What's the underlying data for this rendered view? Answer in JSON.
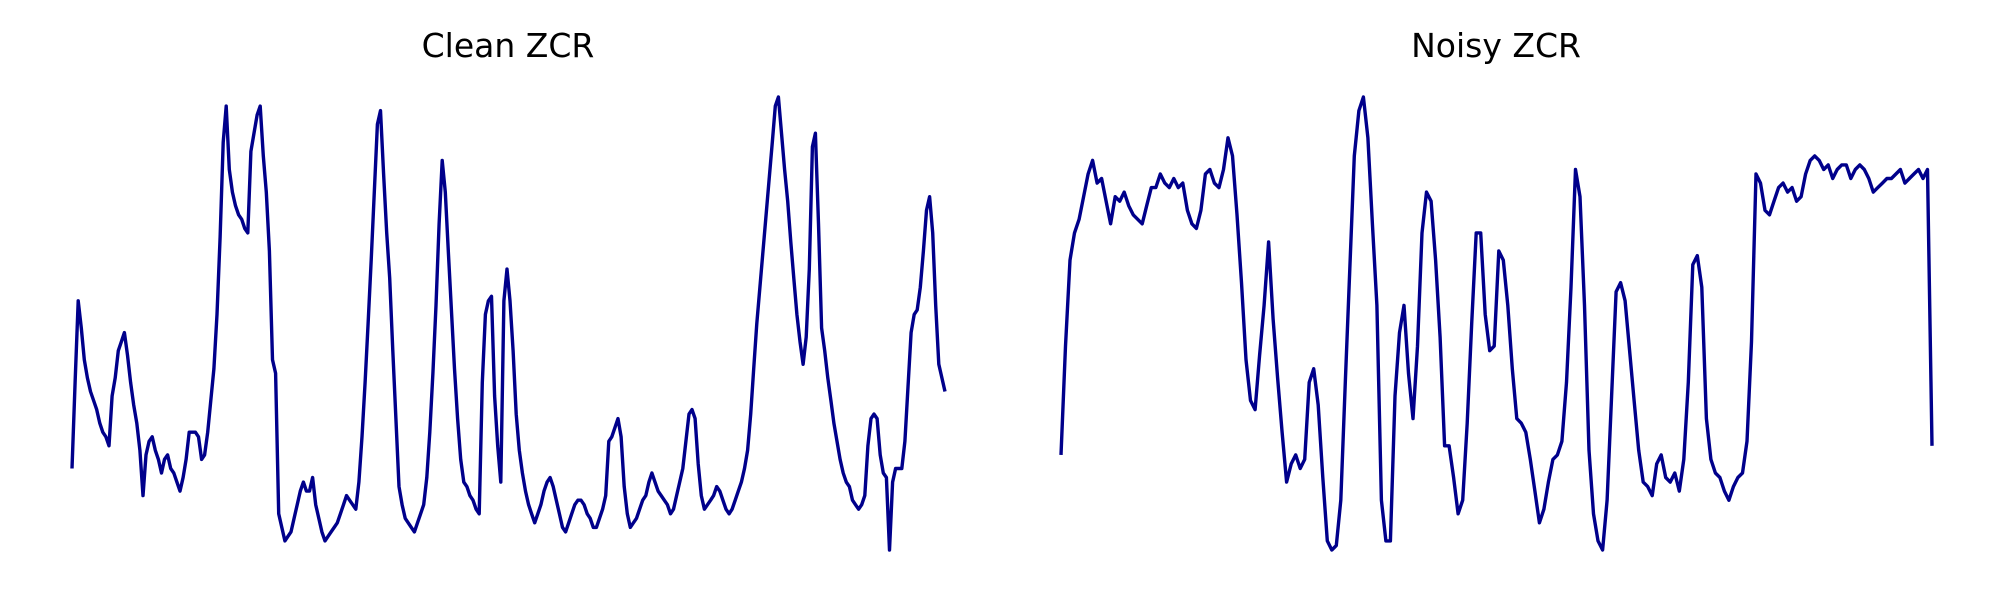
{
  "colors": {
    "line": "#00008b",
    "background": "#ffffff"
  },
  "chart_data": [
    {
      "type": "line",
      "title": "Clean ZCR",
      "xlabel": "",
      "ylabel": "",
      "axes": "off",
      "grid": false,
      "ylim": [
        0,
        1
      ],
      "series": [
        {
          "values": [
            0.18,
            0.37,
            0.55,
            0.49,
            0.42,
            0.38,
            0.35,
            0.33,
            0.31,
            0.28,
            0.26,
            0.25,
            0.23,
            0.34,
            0.38,
            0.44,
            0.46,
            0.48,
            0.43,
            0.37,
            0.32,
            0.28,
            0.22,
            0.12,
            0.21,
            0.24,
            0.25,
            0.22,
            0.2,
            0.17,
            0.2,
            0.21,
            0.18,
            0.17,
            0.15,
            0.13,
            0.16,
            0.2,
            0.26,
            0.26,
            0.26,
            0.25,
            0.2,
            0.21,
            0.26,
            0.33,
            0.4,
            0.52,
            0.69,
            0.9,
            0.98,
            0.84,
            0.79,
            0.76,
            0.74,
            0.73,
            0.71,
            0.7,
            0.88,
            0.92,
            0.96,
            0.98,
            0.87,
            0.79,
            0.66,
            0.42,
            0.39,
            0.08,
            0.05,
            0.02,
            0.03,
            0.04,
            0.07,
            0.1,
            0.13,
            0.15,
            0.13,
            0.13,
            0.16,
            0.1,
            0.07,
            0.04,
            0.02,
            0.03,
            0.04,
            0.05,
            0.06,
            0.08,
            0.1,
            0.12,
            0.11,
            0.1,
            0.09,
            0.15,
            0.25,
            0.37,
            0.5,
            0.64,
            0.79,
            0.94,
            0.97,
            0.83,
            0.7,
            0.6,
            0.44,
            0.29,
            0.14,
            0.1,
            0.07,
            0.06,
            0.05,
            0.04,
            0.06,
            0.08,
            0.1,
            0.16,
            0.26,
            0.39,
            0.54,
            0.72,
            0.86,
            0.79,
            0.66,
            0.53,
            0.4,
            0.29,
            0.2,
            0.15,
            0.14,
            0.12,
            0.11,
            0.09,
            0.08,
            0.37,
            0.52,
            0.55,
            0.56,
            0.34,
            0.23,
            0.15,
            0.55,
            0.62,
            0.55,
            0.44,
            0.3,
            0.22,
            0.17,
            0.13,
            0.1,
            0.08,
            0.06,
            0.08,
            0.1,
            0.13,
            0.15,
            0.16,
            0.14,
            0.11,
            0.08,
            0.05,
            0.04,
            0.06,
            0.08,
            0.1,
            0.11,
            0.11,
            0.1,
            0.08,
            0.07,
            0.05,
            0.05,
            0.07,
            0.09,
            0.12,
            0.24,
            0.25,
            0.27,
            0.29,
            0.25,
            0.14,
            0.08,
            0.05,
            0.06,
            0.07,
            0.09,
            0.11,
            0.12,
            0.15,
            0.17,
            0.15,
            0.13,
            0.12,
            0.11,
            0.1,
            0.08,
            0.09,
            0.12,
            0.15,
            0.18,
            0.24,
            0.3,
            0.31,
            0.29,
            0.19,
            0.12,
            0.09,
            0.1,
            0.11,
            0.12,
            0.14,
            0.13,
            0.11,
            0.09,
            0.08,
            0.09,
            0.11,
            0.13,
            0.15,
            0.18,
            0.22,
            0.3,
            0.4,
            0.5,
            0.58,
            0.66,
            0.74,
            0.82,
            0.9,
            0.98,
            1.0,
            0.92,
            0.84,
            0.77,
            0.68,
            0.6,
            0.52,
            0.46,
            0.41,
            0.47,
            0.62,
            0.89,
            0.92,
            0.72,
            0.49,
            0.44,
            0.38,
            0.33,
            0.28,
            0.24,
            0.2,
            0.17,
            0.15,
            0.14,
            0.11,
            0.1,
            0.09,
            0.1,
            0.12,
            0.23,
            0.29,
            0.3,
            0.29,
            0.21,
            0.17,
            0.16,
            0.0,
            0.15,
            0.18,
            0.18,
            0.18,
            0.24,
            0.36,
            0.48,
            0.52,
            0.53,
            0.58,
            0.66,
            0.75,
            0.78,
            0.7,
            0.54,
            0.41,
            0.38,
            0.35
          ]
        }
      ]
    },
    {
      "type": "line",
      "title": "Noisy ZCR",
      "xlabel": "",
      "ylabel": "",
      "axes": "off",
      "grid": false,
      "ylim": [
        0,
        1
      ],
      "series": [
        {
          "values": [
            0.21,
            0.45,
            0.64,
            0.7,
            0.73,
            0.78,
            0.83,
            0.86,
            0.81,
            0.82,
            0.77,
            0.72,
            0.78,
            0.77,
            0.79,
            0.76,
            0.74,
            0.73,
            0.72,
            0.76,
            0.8,
            0.8,
            0.83,
            0.81,
            0.8,
            0.82,
            0.8,
            0.81,
            0.75,
            0.72,
            0.71,
            0.75,
            0.83,
            0.84,
            0.81,
            0.8,
            0.84,
            0.91,
            0.87,
            0.74,
            0.59,
            0.42,
            0.33,
            0.31,
            0.43,
            0.54,
            0.68,
            0.51,
            0.38,
            0.26,
            0.15,
            0.19,
            0.21,
            0.18,
            0.2,
            0.37,
            0.4,
            0.32,
            0.16,
            0.02,
            0.0,
            0.01,
            0.11,
            0.37,
            0.62,
            0.87,
            0.97,
            1.0,
            0.91,
            0.72,
            0.54,
            0.11,
            0.02,
            0.02,
            0.34,
            0.48,
            0.54,
            0.39,
            0.29,
            0.45,
            0.7,
            0.79,
            0.77,
            0.64,
            0.47,
            0.23,
            0.23,
            0.16,
            0.08,
            0.11,
            0.28,
            0.5,
            0.7,
            0.7,
            0.52,
            0.44,
            0.45,
            0.66,
            0.64,
            0.54,
            0.4,
            0.29,
            0.28,
            0.26,
            0.2,
            0.13,
            0.06,
            0.09,
            0.15,
            0.2,
            0.21,
            0.24,
            0.37,
            0.58,
            0.84,
            0.78,
            0.54,
            0.22,
            0.08,
            0.02,
            0.0,
            0.11,
            0.34,
            0.57,
            0.59,
            0.55,
            0.44,
            0.33,
            0.22,
            0.15,
            0.14,
            0.12,
            0.19,
            0.21,
            0.16,
            0.15,
            0.17,
            0.13,
            0.2,
            0.37,
            0.63,
            0.65,
            0.58,
            0.29,
            0.2,
            0.17,
            0.16,
            0.13,
            0.11,
            0.14,
            0.16,
            0.17,
            0.24,
            0.46,
            0.83,
            0.81,
            0.75,
            0.74,
            0.77,
            0.8,
            0.81,
            0.79,
            0.8,
            0.77,
            0.78,
            0.83,
            0.86,
            0.87,
            0.86,
            0.84,
            0.85,
            0.82,
            0.84,
            0.85,
            0.85,
            0.82,
            0.84,
            0.85,
            0.84,
            0.82,
            0.79,
            0.8,
            0.81,
            0.82,
            0.82,
            0.83,
            0.84,
            0.81,
            0.82,
            0.83,
            0.84,
            0.82,
            0.84,
            0.23
          ]
        }
      ]
    }
  ]
}
